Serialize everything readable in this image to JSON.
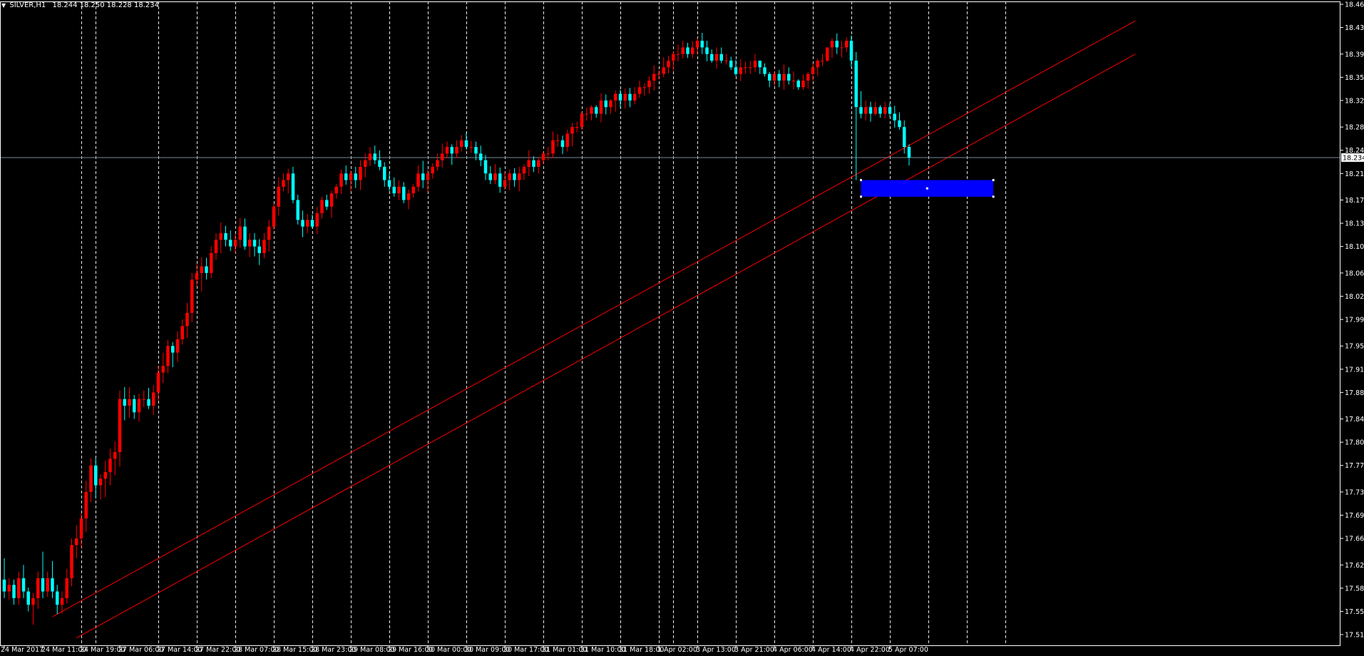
{
  "header": {
    "symbol": "SILVER,H1",
    "ohlc": "18.244 18.250 18.228 18.234"
  },
  "colors": {
    "background": "#000000",
    "bull": "#ff0000",
    "bear": "#00ffff",
    "grid": "#ffffff",
    "trendline": "#ff0000",
    "zone": "#0000ff",
    "bidline": "#778899",
    "axis_text": "#ffffff",
    "price_tag_bg": "#ffffff",
    "price_tag_text": "#000000"
  },
  "current_price": "18.234",
  "chart_data": {
    "type": "candlestick",
    "ylim": [
      17.5,
      18.47
    ],
    "y_ticks": [
      "18.465",
      "18.430",
      "18.390",
      "18.355",
      "18.320",
      "18.280",
      "18.245",
      "18.210",
      "18.170",
      "18.135",
      "18.100",
      "18.060",
      "18.025",
      "17.990",
      "17.950",
      "17.915",
      "17.880",
      "17.840",
      "17.805",
      "17.770",
      "17.730",
      "17.695",
      "17.660",
      "17.620",
      "17.585",
      "17.550",
      "17.515"
    ],
    "x_ticks": [
      "24 Mar 2017",
      "24 Mar 11:00",
      "24 Mar 19:00",
      "27 Mar 06:00",
      "27 Mar 14:00",
      "27 Mar 22:00",
      "28 Mar 07:00",
      "28 Mar 15:00",
      "28 Mar 23:00",
      "29 Mar 08:00",
      "29 Mar 16:00",
      "30 Mar 00:00",
      "30 Mar 09:00",
      "30 Mar 17:00",
      "31 Mar 01:00",
      "31 Mar 10:00",
      "31 Mar 18:00",
      "1 Apr 02:00",
      "3 Apr 13:00",
      "3 Apr 21:00",
      "4 Apr 06:00",
      "4 Apr 14:00",
      "4 Apr 22:00",
      "5 Apr 07:00"
    ],
    "x_tick_index": [
      0,
      8,
      16,
      24,
      32,
      40,
      48,
      56,
      64,
      72,
      80,
      88,
      96,
      104,
      112,
      120,
      128,
      136,
      144,
      152,
      160,
      168,
      176,
      184
    ],
    "period_separators": [
      16,
      19,
      32,
      40,
      48,
      56,
      64,
      72,
      80,
      88,
      96,
      104,
      112,
      120,
      128,
      136,
      139,
      144,
      152,
      160,
      168,
      176,
      184,
      192,
      200,
      208
    ],
    "bid_line": 18.234,
    "trendlines": [
      {
        "from": [
          10,
          17.542
        ],
        "to": [
          235,
          18.44
        ]
      },
      {
        "from": [
          15,
          17.51
        ],
        "to": [
          235,
          18.39
        ]
      }
    ],
    "zone": {
      "from_index": 178,
      "to_index": 205.5,
      "high": 18.2,
      "low": 18.175
    },
    "candles": [
      [
        17.598,
        17.63,
        17.57,
        17.58
      ],
      [
        17.58,
        17.6,
        17.568,
        17.59
      ],
      [
        17.59,
        17.598,
        17.56,
        17.57
      ],
      [
        17.57,
        17.61,
        17.56,
        17.6
      ],
      [
        17.6,
        17.62,
        17.57,
        17.58
      ],
      [
        17.58,
        17.586,
        17.55,
        17.56
      ],
      [
        17.56,
        17.578,
        17.53,
        17.57
      ],
      [
        17.57,
        17.61,
        17.554,
        17.6
      ],
      [
        17.6,
        17.64,
        17.57,
        17.58
      ],
      [
        17.58,
        17.61,
        17.572,
        17.6
      ],
      [
        17.6,
        17.626,
        17.57,
        17.58
      ],
      [
        17.58,
        17.59,
        17.546,
        17.56
      ],
      [
        17.56,
        17.58,
        17.547,
        17.57
      ],
      [
        17.57,
        17.614,
        17.562,
        17.6
      ],
      [
        17.6,
        17.66,
        17.588,
        17.65
      ],
      [
        17.65,
        17.68,
        17.63,
        17.66
      ],
      [
        17.66,
        17.698,
        17.646,
        17.69
      ],
      [
        17.69,
        17.747,
        17.67,
        17.73
      ],
      [
        17.73,
        17.781,
        17.715,
        17.77
      ],
      [
        17.77,
        17.782,
        17.72,
        17.74
      ],
      [
        17.74,
        17.756,
        17.718,
        17.75
      ],
      [
        17.75,
        17.777,
        17.722,
        17.76
      ],
      [
        17.76,
        17.795,
        17.74,
        17.78
      ],
      [
        17.78,
        17.806,
        17.755,
        17.79
      ],
      [
        17.79,
        17.883,
        17.768,
        17.87
      ],
      [
        17.87,
        17.888,
        17.838,
        17.86
      ],
      [
        17.86,
        17.888,
        17.842,
        17.87
      ],
      [
        17.87,
        17.876,
        17.84,
        17.85
      ],
      [
        17.85,
        17.878,
        17.836,
        17.87
      ],
      [
        17.87,
        17.883,
        17.858,
        17.87
      ],
      [
        17.87,
        17.887,
        17.855,
        17.86
      ],
      [
        17.86,
        17.891,
        17.846,
        17.88
      ],
      [
        17.88,
        17.92,
        17.868,
        17.91
      ],
      [
        17.91,
        17.94,
        17.894,
        17.92
      ],
      [
        17.92,
        17.959,
        17.909,
        17.95
      ],
      [
        17.95,
        17.956,
        17.918,
        17.94
      ],
      [
        17.94,
        17.972,
        17.926,
        17.96
      ],
      [
        17.96,
        17.99,
        17.952,
        17.98
      ],
      [
        17.98,
        18.015,
        17.962,
        18.0
      ],
      [
        18.0,
        18.06,
        17.986,
        18.05
      ],
      [
        18.05,
        18.074,
        18.04,
        18.06
      ],
      [
        18.06,
        18.084,
        18.032,
        18.07
      ],
      [
        18.07,
        18.083,
        18.05,
        18.06
      ],
      [
        18.06,
        18.1,
        18.052,
        18.09
      ],
      [
        18.09,
        18.12,
        18.08,
        18.11
      ],
      [
        18.11,
        18.136,
        18.09,
        18.12
      ],
      [
        18.12,
        18.131,
        18.1,
        18.11
      ],
      [
        18.11,
        18.124,
        18.093,
        18.1
      ],
      [
        18.1,
        18.119,
        18.09,
        18.11
      ],
      [
        18.11,
        18.143,
        18.098,
        18.13
      ],
      [
        18.13,
        18.142,
        18.095,
        18.1
      ],
      [
        18.1,
        18.12,
        18.084,
        18.11
      ],
      [
        18.11,
        18.12,
        18.085,
        18.1
      ],
      [
        18.1,
        18.111,
        18.072,
        18.09
      ],
      [
        18.09,
        18.12,
        18.082,
        18.11
      ],
      [
        18.11,
        18.14,
        18.092,
        18.13
      ],
      [
        18.13,
        18.164,
        18.125,
        18.16
      ],
      [
        18.16,
        18.204,
        18.147,
        18.19
      ],
      [
        18.19,
        18.21,
        18.183,
        18.2
      ],
      [
        18.2,
        18.217,
        18.18,
        18.21
      ],
      [
        18.21,
        18.22,
        18.165,
        18.17
      ],
      [
        18.17,
        18.178,
        18.133,
        18.14
      ],
      [
        18.14,
        18.154,
        18.114,
        18.13
      ],
      [
        18.13,
        18.149,
        18.12,
        18.14
      ],
      [
        18.14,
        18.148,
        18.127,
        18.13
      ],
      [
        18.13,
        18.16,
        18.119,
        18.15
      ],
      [
        18.15,
        18.175,
        18.142,
        18.17
      ],
      [
        18.17,
        18.178,
        18.155,
        18.16
      ],
      [
        18.16,
        18.184,
        18.143,
        18.18
      ],
      [
        18.18,
        18.194,
        18.172,
        18.19
      ],
      [
        18.19,
        18.216,
        18.179,
        18.21
      ],
      [
        18.21,
        18.222,
        18.193,
        18.2
      ],
      [
        18.2,
        18.215,
        18.183,
        18.21
      ],
      [
        18.21,
        18.22,
        18.188,
        18.2
      ],
      [
        18.2,
        18.23,
        18.185,
        18.22
      ],
      [
        18.22,
        18.24,
        18.204,
        18.23
      ],
      [
        18.23,
        18.25,
        18.221,
        18.24
      ],
      [
        18.24,
        18.252,
        18.224,
        18.23
      ],
      [
        18.23,
        18.245,
        18.215,
        18.22
      ],
      [
        18.22,
        18.227,
        18.19,
        18.2
      ],
      [
        18.2,
        18.21,
        18.184,
        18.19
      ],
      [
        18.19,
        18.204,
        18.175,
        18.18
      ],
      [
        18.18,
        18.2,
        18.17,
        18.19
      ],
      [
        18.19,
        18.197,
        18.165,
        18.17
      ],
      [
        18.17,
        18.186,
        18.156,
        18.18
      ],
      [
        18.18,
        18.194,
        18.174,
        18.19
      ],
      [
        18.19,
        18.222,
        18.183,
        18.21
      ],
      [
        18.21,
        18.229,
        18.188,
        18.2
      ],
      [
        18.2,
        18.216,
        18.182,
        18.21
      ],
      [
        18.21,
        18.225,
        18.202,
        18.22
      ],
      [
        18.22,
        18.24,
        18.214,
        18.23
      ],
      [
        18.23,
        18.255,
        18.219,
        18.24
      ],
      [
        18.24,
        18.258,
        18.233,
        18.25
      ],
      [
        18.25,
        18.254,
        18.223,
        18.24
      ],
      [
        18.24,
        18.26,
        18.233,
        18.25
      ],
      [
        18.25,
        18.268,
        18.243,
        18.26
      ],
      [
        18.26,
        18.272,
        18.246,
        18.25
      ],
      [
        18.25,
        18.259,
        18.241,
        18.25
      ],
      [
        18.25,
        18.258,
        18.23,
        18.24
      ],
      [
        18.24,
        18.252,
        18.221,
        18.23
      ],
      [
        18.23,
        18.238,
        18.2,
        18.21
      ],
      [
        18.21,
        18.221,
        18.194,
        18.2
      ],
      [
        18.2,
        18.224,
        18.194,
        18.21
      ],
      [
        18.21,
        18.219,
        18.181,
        18.19
      ],
      [
        18.19,
        18.213,
        18.185,
        18.2
      ],
      [
        18.2,
        18.216,
        18.185,
        18.21
      ],
      [
        18.21,
        18.218,
        18.19,
        18.2
      ],
      [
        18.2,
        18.22,
        18.183,
        18.21
      ],
      [
        18.21,
        18.224,
        18.2,
        18.22
      ],
      [
        18.22,
        18.245,
        18.206,
        18.23
      ],
      [
        18.23,
        18.236,
        18.212,
        18.22
      ],
      [
        18.22,
        18.235,
        18.21,
        18.23
      ],
      [
        18.23,
        18.243,
        18.224,
        18.24
      ],
      [
        18.24,
        18.25,
        18.23,
        18.24
      ],
      [
        18.24,
        18.273,
        18.233,
        18.26
      ],
      [
        18.26,
        18.269,
        18.25,
        18.26
      ],
      [
        18.26,
        18.267,
        18.239,
        18.25
      ],
      [
        18.25,
        18.276,
        18.243,
        18.27
      ],
      [
        18.27,
        18.286,
        18.251,
        18.28
      ],
      [
        18.28,
        18.288,
        18.272,
        18.28
      ],
      [
        18.28,
        18.303,
        18.276,
        18.3
      ],
      [
        18.3,
        18.309,
        18.29,
        18.3
      ],
      [
        18.3,
        18.313,
        18.29,
        18.31
      ],
      [
        18.31,
        18.313,
        18.294,
        18.3
      ],
      [
        18.3,
        18.331,
        18.287,
        18.32
      ],
      [
        18.32,
        18.329,
        18.299,
        18.31
      ],
      [
        18.31,
        18.322,
        18.3,
        18.32
      ],
      [
        18.32,
        18.335,
        18.303,
        18.33
      ],
      [
        18.33,
        18.336,
        18.309,
        18.32
      ],
      [
        18.32,
        18.338,
        18.308,
        18.33
      ],
      [
        18.33,
        18.339,
        18.31,
        18.32
      ],
      [
        18.32,
        18.34,
        18.314,
        18.33
      ],
      [
        18.33,
        18.35,
        18.324,
        18.34
      ],
      [
        18.34,
        18.346,
        18.327,
        18.34
      ],
      [
        18.34,
        18.356,
        18.33,
        18.35
      ],
      [
        18.35,
        18.373,
        18.335,
        18.36
      ],
      [
        18.36,
        18.366,
        18.352,
        18.36
      ],
      [
        18.36,
        18.385,
        18.355,
        18.37
      ],
      [
        18.37,
        18.387,
        18.361,
        18.38
      ],
      [
        18.38,
        18.394,
        18.365,
        18.39
      ],
      [
        18.39,
        18.404,
        18.379,
        18.39
      ],
      [
        18.39,
        18.41,
        18.383,
        18.4
      ],
      [
        18.4,
        18.407,
        18.384,
        18.39
      ],
      [
        18.39,
        18.41,
        18.384,
        18.4
      ],
      [
        18.4,
        18.414,
        18.39,
        18.41
      ],
      [
        18.41,
        18.422,
        18.39,
        18.4
      ],
      [
        18.4,
        18.41,
        18.379,
        18.39
      ],
      [
        18.39,
        18.397,
        18.377,
        18.38
      ],
      [
        18.38,
        18.4,
        18.368,
        18.39
      ],
      [
        18.39,
        18.4,
        18.376,
        18.38
      ],
      [
        18.38,
        18.39,
        18.374,
        18.38
      ],
      [
        18.38,
        18.386,
        18.366,
        18.37
      ],
      [
        18.37,
        18.381,
        18.357,
        18.36
      ],
      [
        18.36,
        18.382,
        18.349,
        18.37
      ],
      [
        18.37,
        18.378,
        18.36,
        18.37
      ],
      [
        18.37,
        18.38,
        18.36,
        18.37
      ],
      [
        18.37,
        18.39,
        18.363,
        18.38
      ],
      [
        18.38,
        18.38,
        18.36,
        18.37
      ],
      [
        18.37,
        18.376,
        18.356,
        18.36
      ],
      [
        18.36,
        18.363,
        18.34,
        18.35
      ],
      [
        18.35,
        18.364,
        18.342,
        18.36
      ],
      [
        18.36,
        18.366,
        18.34,
        18.35
      ],
      [
        18.35,
        18.374,
        18.336,
        18.36
      ],
      [
        18.36,
        18.37,
        18.344,
        18.35
      ],
      [
        18.35,
        18.364,
        18.337,
        18.35
      ],
      [
        18.35,
        18.352,
        18.336,
        18.34
      ],
      [
        18.34,
        18.359,
        18.336,
        18.35
      ],
      [
        18.35,
        18.363,
        18.338,
        18.36
      ],
      [
        18.36,
        18.376,
        18.35,
        18.37
      ],
      [
        18.37,
        18.383,
        18.357,
        18.38
      ],
      [
        18.38,
        18.39,
        18.372,
        18.38
      ],
      [
        18.38,
        18.4,
        18.378,
        18.4
      ],
      [
        18.4,
        18.414,
        18.384,
        18.41
      ],
      [
        18.41,
        18.421,
        18.39,
        18.4
      ],
      [
        18.4,
        18.41,
        18.385,
        18.4
      ],
      [
        18.4,
        18.415,
        18.393,
        18.41
      ],
      [
        18.41,
        18.418,
        18.37,
        18.38
      ],
      [
        18.38,
        18.393,
        18.2,
        18.31
      ],
      [
        18.31,
        18.334,
        18.293,
        18.3
      ],
      [
        18.3,
        18.32,
        18.29,
        18.31
      ],
      [
        18.31,
        18.318,
        18.288,
        18.3
      ],
      [
        18.3,
        18.318,
        18.297,
        18.31
      ],
      [
        18.31,
        18.313,
        18.294,
        18.3
      ],
      [
        18.3,
        18.318,
        18.293,
        18.31
      ],
      [
        18.31,
        18.316,
        18.295,
        18.3
      ],
      [
        18.3,
        18.312,
        18.279,
        18.29
      ],
      [
        18.29,
        18.302,
        18.276,
        18.28
      ],
      [
        18.28,
        18.29,
        18.24,
        18.25
      ],
      [
        18.25,
        18.254,
        18.222,
        18.234
      ]
    ],
    "overlays": [
      "Blue rectangle zone",
      "Two ascending red trendlines",
      "Bid line"
    ]
  }
}
